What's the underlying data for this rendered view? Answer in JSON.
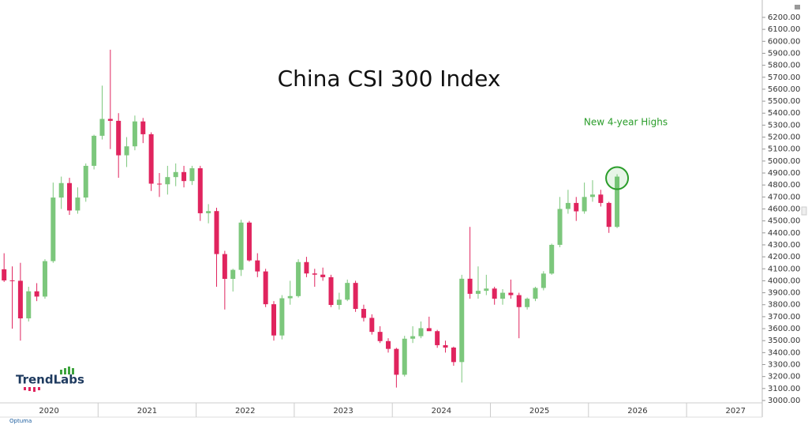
{
  "chart_data": {
    "type": "candlestick",
    "title": "China CSI 300 Index",
    "annotation": "New 4-year Highs",
    "logo": "TrendLabs",
    "source": "Optuma",
    "categories": [
      "2020",
      "2021",
      "2022",
      "2023",
      "2024",
      "2025",
      "2026",
      "2027"
    ],
    "up_color": "#7cc77c",
    "down_color": "#e0245e",
    "open": [
      4096,
      4003,
      4000,
      3686,
      3912,
      3868,
      4164,
      4695,
      4816,
      4587,
      4695,
      4960,
      5211,
      5352,
      5336,
      5048,
      5123,
      5331,
      5224,
      4811,
      4806,
      4866,
      4908,
      4833,
      4940,
      4564,
      4582,
      4223,
      4016,
      4091,
      4486,
      4170,
      4078,
      3804,
      3543,
      3854,
      3872,
      4156,
      4061,
      4051,
      4030,
      3798,
      3842,
      3982,
      3765,
      3690,
      3573,
      3496,
      3431,
      3215,
      3516,
      3537,
      3604,
      3579,
      3462,
      3442,
      3321,
      4017,
      3891,
      3916,
      3935,
      3850,
      3900,
      3880,
      3780,
      3850,
      3940,
      4060,
      4300,
      4600,
      4650,
      4580,
      4700,
      4720,
      4650,
      4450
    ],
    "high": [
      4230,
      4120,
      4150,
      3950,
      3980,
      4180,
      4820,
      4870,
      4860,
      4780,
      4980,
      5220,
      5630,
      5930,
      5400,
      5200,
      5380,
      5360,
      5240,
      4900,
      4960,
      4980,
      4960,
      4960,
      4960,
      4640,
      4610,
      4250,
      4100,
      4510,
      4500,
      4230,
      4100,
      3830,
      3880,
      4000,
      4180,
      4200,
      4100,
      4110,
      4050,
      3900,
      4010,
      4000,
      3800,
      3720,
      3620,
      3520,
      3440,
      3540,
      3620,
      3660,
      3700,
      3590,
      3500,
      3450,
      4050,
      4450,
      4120,
      4050,
      3950,
      3930,
      4010,
      3900,
      3860,
      3950,
      4080,
      4310,
      4700,
      4760,
      4700,
      4820,
      4840,
      4760,
      4660,
      4890
    ],
    "low": [
      3990,
      3600,
      3500,
      3660,
      3830,
      3850,
      4150,
      4600,
      4550,
      4560,
      4660,
      4930,
      5180,
      5100,
      4860,
      4950,
      5090,
      5150,
      4750,
      4700,
      4720,
      4790,
      4780,
      4800,
      4500,
      4480,
      3950,
      3760,
      3910,
      4040,
      4160,
      4030,
      3780,
      3500,
      3510,
      3800,
      3860,
      4030,
      3950,
      4000,
      3780,
      3760,
      3830,
      3740,
      3660,
      3550,
      3480,
      3400,
      3108,
      3200,
      3480,
      3520,
      3580,
      3440,
      3400,
      3290,
      3150,
      3850,
      3850,
      3880,
      3800,
      3800,
      3850,
      3520,
      3760,
      3830,
      3920,
      4050,
      4280,
      4560,
      4500,
      4560,
      4660,
      4620,
      4400,
      4440
    ],
    "close": [
      4003,
      4000,
      3686,
      3912,
      3868,
      4164,
      4695,
      4816,
      4587,
      4695,
      4960,
      5211,
      5352,
      5336,
      5048,
      5123,
      5331,
      5224,
      4811,
      4806,
      4866,
      4908,
      4833,
      4940,
      4564,
      4582,
      4223,
      4016,
      4091,
      4486,
      4170,
      4078,
      3804,
      3543,
      3854,
      3872,
      4156,
      4061,
      4051,
      4030,
      3798,
      3842,
      3982,
      3765,
      3690,
      3573,
      3496,
      3431,
      3215,
      3516,
      3537,
      3604,
      3579,
      3462,
      3442,
      3321,
      4017,
      3891,
      3916,
      3935,
      3850,
      3900,
      3880,
      3780,
      3850,
      3940,
      4060,
      4300,
      4600,
      4650,
      4580,
      4700,
      4720,
      4650,
      4450,
      4870
    ],
    "ylim": [
      2980,
      6330
    ],
    "yticks": [
      {
        "value": 3000,
        "label": "3000.00"
      },
      {
        "value": 3100,
        "label": "3100.00"
      },
      {
        "value": 3200,
        "label": "3200.00"
      },
      {
        "value": 3300,
        "label": "3300.00"
      },
      {
        "value": 3400,
        "label": "3400.00"
      },
      {
        "value": 3500,
        "label": "3500.00"
      },
      {
        "value": 3600,
        "label": "3600.00"
      },
      {
        "value": 3700,
        "label": "3700.00"
      },
      {
        "value": 3800,
        "label": "3800.00"
      },
      {
        "value": 3900,
        "label": "3900.00"
      },
      {
        "value": 4000,
        "label": "4000.00"
      },
      {
        "value": 4100,
        "label": "4100.00"
      },
      {
        "value": 4200,
        "label": "4200.00"
      },
      {
        "value": 4300,
        "label": "4300.00"
      },
      {
        "value": 4400,
        "label": "4400.00"
      },
      {
        "value": 4500,
        "label": "4500.00"
      },
      {
        "value": 4600,
        "label": "4600.00"
      },
      {
        "value": 4700,
        "label": "4700.00"
      },
      {
        "value": 4800,
        "label": "4800.00"
      },
      {
        "value": 4900,
        "label": "4900.00"
      },
      {
        "value": 5000,
        "label": "5000.00"
      },
      {
        "value": 5100,
        "label": "5100.00"
      },
      {
        "value": 5200,
        "label": "5200.00"
      },
      {
        "value": 5300,
        "label": "5300.00"
      },
      {
        "value": 5400,
        "label": "5400.00"
      },
      {
        "value": 5500,
        "label": "5500.00"
      },
      {
        "value": 5600,
        "label": "5600.00"
      },
      {
        "value": 5700,
        "label": "5700.00"
      },
      {
        "value": 5800,
        "label": "5800.00"
      },
      {
        "value": 5900,
        "label": "5900.00"
      },
      {
        "value": 6000,
        "label": "6000.00"
      },
      {
        "value": 6100,
        "label": "6100.00"
      },
      {
        "value": 6200,
        "label": "6200.00"
      }
    ]
  }
}
